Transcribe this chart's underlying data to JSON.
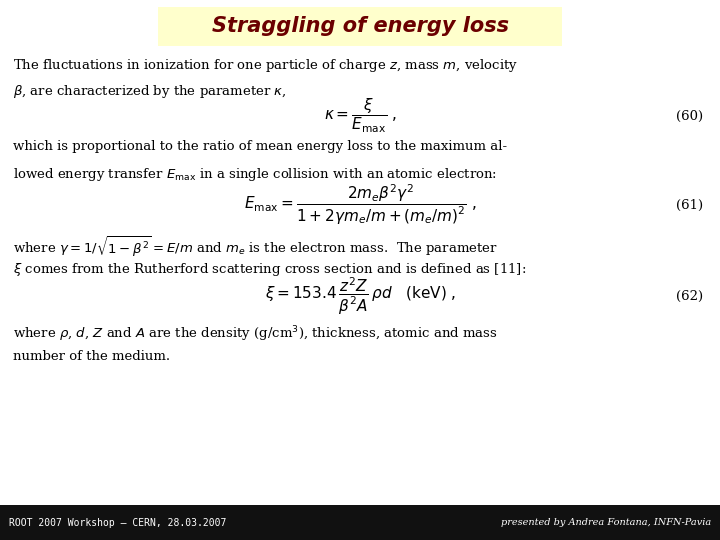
{
  "title": "Straggling of energy loss",
  "title_color": "#6B0000",
  "title_bg_color": "#FFFFCC",
  "title_fontsize": 15,
  "bg_color": "#FFFFFF",
  "footer_left": "ROOT 2007 Workshop – CERN, 28.03.2007",
  "footer_right": "presented by Andrea Fontana, INFN-Pavia",
  "body_lines_1": [
    "The fluctuations in ionization for one particle of charge $z$, mass $m$, velocity",
    "$\\beta$, are characterized by the parameter $\\kappa$,"
  ],
  "eq60": "$\\kappa = \\dfrac{\\xi}{E_{\\mathrm{max}}}\\;,$",
  "eq60_num": "(60)",
  "body_lines_2": [
    "which is proportional to the ratio of mean energy loss to the maximum al-",
    "lowed energy transfer $E_{\\mathrm{max}}$ in a single collision with an atomic electron:"
  ],
  "eq61": "$E_{\\mathrm{max}} = \\dfrac{2m_e\\beta^2\\gamma^2}{1 + 2\\gamma m_e/m + (m_e/m)^2}\\;,$",
  "eq61_num": "(61)",
  "body_lines_3": [
    "where $\\gamma = 1/\\sqrt{1-\\beta^2} = E/m$ and $m_e$ is the electron mass.  The parameter",
    "$\\xi$ comes from the Rutherford scattering cross section and is defined as [11]:"
  ],
  "eq62": "$\\xi = 153.4\\,\\dfrac{z^2 Z}{\\beta^2 A}\\,\\rho d \\quad (\\mathrm{keV})\\;,$",
  "eq62_num": "(62)",
  "body_lines_4": [
    "where $\\rho$, $d$, $Z$ and $A$ are the density (g/cm$^3$), thickness, atomic and mass",
    "number of the medium."
  ],
  "text_fontsize": 9.5,
  "eq_fontsize": 11
}
